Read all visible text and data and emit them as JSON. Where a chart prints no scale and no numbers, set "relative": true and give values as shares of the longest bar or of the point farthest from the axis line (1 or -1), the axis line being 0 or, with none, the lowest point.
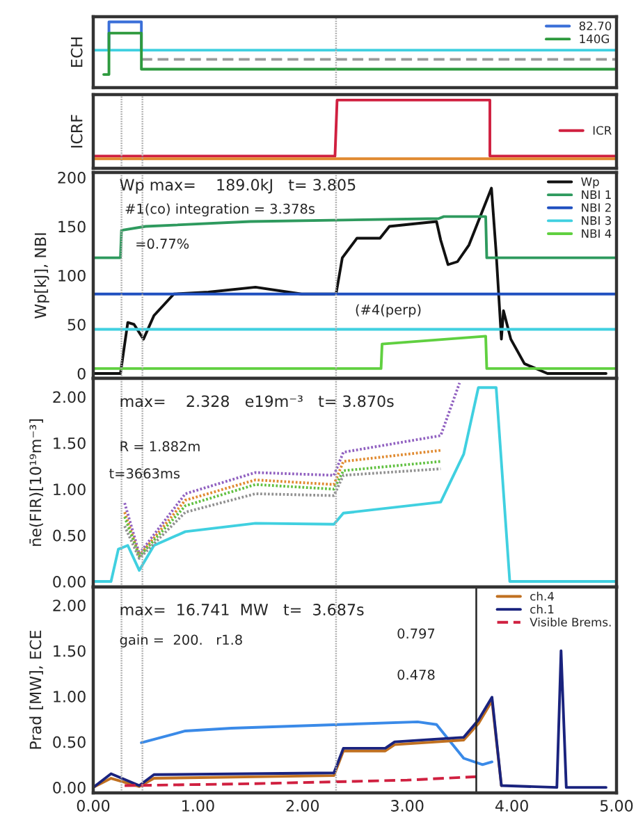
{
  "chart_data": [
    {
      "type": "line",
      "ylabel": "ECH",
      "relative": true,
      "xlim": [
        0,
        5
      ],
      "tick_labels": false,
      "legend": "top right",
      "grid": false,
      "series": [
        {
          "name": "82.70",
          "color": "#3a6fd8",
          "x": [
            0.15,
            0.15,
            0.46,
            0.46
          ],
          "values": [
            0.57,
            1,
            1,
            0.57
          ]
        },
        {
          "color": "#40d0e0",
          "x": [
            0,
            5
          ],
          "values": [
            0.57,
            0.57
          ]
        },
        {
          "color": "#9a9a9a",
          "line_style": "dashed",
          "x": [
            0.46,
            5
          ],
          "values": [
            0.43,
            0.43
          ]
        },
        {
          "name": "140G",
          "color": "#2e9a3e",
          "x": [
            0.1,
            0.15,
            0.15,
            0.46,
            0.46,
            5
          ],
          "values": [
            0.2,
            0.2,
            0.83,
            0.83,
            0.28,
            0.28
          ]
        }
      ],
      "ref_lines": [
        {
          "axis": "x",
          "value": 2.32,
          "color": "#aaaaaa",
          "line_style": "dotted"
        }
      ]
    },
    {
      "type": "line",
      "ylabel": "ICRF",
      "relative": true,
      "xlim": [
        0,
        5
      ],
      "tick_labels": false,
      "legend": "right",
      "grid": false,
      "series": [
        {
          "name": "ICR",
          "color": "#d02040",
          "x": [
            0,
            2.31,
            2.33,
            3.79,
            3.79,
            5
          ],
          "values": [
            0.18,
            0.18,
            1,
            1,
            0.18,
            0.18
          ]
        },
        {
          "color": "#e08a30",
          "x": [
            0,
            5
          ],
          "values": [
            0.14,
            0.14
          ]
        }
      ],
      "ref_lines": [
        {
          "axis": "x",
          "value": 0.27,
          "color": "#aaaaaa",
          "line_style": "dotted"
        },
        {
          "axis": "x",
          "value": 0.47,
          "color": "#aaaaaa",
          "line_style": "dotted"
        }
      ]
    },
    {
      "type": "line",
      "ylabel": "Wp[kJ], NBI",
      "xlim": [
        0,
        5
      ],
      "ylim": [
        -5,
        205
      ],
      "yticks": [
        0,
        50,
        100,
        150,
        200
      ],
      "tick_labels": "y",
      "legend": "top right",
      "grid": false,
      "series": [
        {
          "name": "Wp",
          "color": "#111111",
          "x": [
            0,
            0.26,
            0.33,
            0.39,
            0.48,
            0.58,
            0.77,
            1.1,
            1.55,
            1.99,
            2.32,
            2.38,
            2.52,
            2.74,
            2.83,
            3.1,
            3.28,
            3.32,
            3.39,
            3.48,
            3.59,
            3.805,
            3.85,
            3.9,
            3.92,
            3.99,
            4.12,
            4.34,
            4.9
          ],
          "values": [
            0,
            0,
            52,
            50,
            35,
            59,
            81,
            83,
            88,
            81,
            81,
            118,
            138,
            138,
            150,
            153,
            155,
            136,
            111,
            114,
            131,
            189,
            123,
            35,
            64,
            35,
            10,
            0,
            0
          ]
        },
        {
          "name": "NBI 1",
          "color": "#2e9a5e",
          "x": [
            0,
            0.26,
            0.27,
            0.5,
            1.5,
            3.3,
            3.35,
            3.75,
            3.76,
            5
          ],
          "values": [
            118,
            118,
            146,
            150,
            155,
            158,
            160,
            160,
            118,
            118
          ]
        },
        {
          "name": "NBI 2",
          "color": "#2050c0",
          "x": [
            0,
            5
          ],
          "values": [
            81,
            81
          ]
        },
        {
          "name": "NBI 3",
          "color": "#40d0e0",
          "x": [
            0,
            5
          ],
          "values": [
            45,
            45
          ]
        },
        {
          "name": "NBI 4",
          "color": "#60d040",
          "x": [
            0,
            2.75,
            2.76,
            3.75,
            3.76,
            5
          ],
          "values": [
            5,
            5,
            30,
            38,
            5,
            5
          ]
        }
      ],
      "annotations": [
        "Wp max=    189.0kJ   t= 3.805",
        "#1(co) integration = 3.378s",
        "=0.77%",
        "(#4(perp)"
      ],
      "ref_lines": [
        {
          "axis": "x",
          "value": 0.27,
          "color": "#aaaaaa",
          "line_style": "dotted"
        },
        {
          "axis": "x",
          "value": 0.47,
          "color": "#aaaaaa",
          "line_style": "dotted"
        },
        {
          "axis": "x",
          "value": 2.32,
          "color": "#aaaaaa",
          "line_style": "dotted"
        }
      ]
    },
    {
      "type": "line",
      "ylabel": "n̄e(FIR)[10¹⁹m⁻³]",
      "xlim": [
        0,
        5
      ],
      "ylim": [
        -0.06,
        2.2
      ],
      "yticks": [
        {
          "value": 0,
          "label": "0.00"
        },
        {
          "value": 0.5,
          "label": "0.50"
        },
        {
          "value": 1,
          "label": "1.00"
        },
        {
          "value": 1.5,
          "label": "1.50"
        },
        {
          "value": 2,
          "label": "2.00"
        }
      ],
      "tick_labels": "y",
      "grid": false,
      "series": [
        {
          "color": "#40d0e0",
          "x": [
            0,
            0.17,
            0.24,
            0.33,
            0.44,
            0.58,
            0.88,
            1.55,
            2.3,
            2.39,
            3.32,
            3.54,
            3.68,
            3.85,
            3.98,
            5
          ],
          "values": [
            0,
            0,
            0.35,
            0.39,
            0.12,
            0.39,
            0.54,
            0.63,
            0.62,
            0.74,
            0.86,
            1.38,
            2.1,
            2.1,
            0,
            0
          ]
        },
        {
          "color": "#9060c0",
          "line_style": "dotted",
          "x": [
            0.3,
            0.44,
            0.88,
            1.55,
            2.3,
            2.39,
            3.32,
            3.5
          ],
          "values": [
            0.85,
            0.3,
            0.95,
            1.18,
            1.15,
            1.4,
            1.58,
            2.15
          ]
        },
        {
          "color": "#e08a30",
          "line_style": "dotted",
          "x": [
            0.3,
            0.44,
            0.88,
            1.55,
            2.3,
            2.39,
            3.32
          ],
          "values": [
            0.75,
            0.28,
            0.88,
            1.1,
            1.05,
            1.3,
            1.42
          ]
        },
        {
          "color": "#60c040",
          "line_style": "dotted",
          "x": [
            0.3,
            0.44,
            0.88,
            1.55,
            2.3,
            2.39,
            3.32
          ],
          "values": [
            0.7,
            0.27,
            0.82,
            1.05,
            1.0,
            1.2,
            1.3
          ]
        },
        {
          "color": "#909090",
          "line_style": "dotted",
          "x": [
            0.3,
            0.44,
            0.88,
            1.55,
            2.3,
            2.39,
            3.32
          ],
          "values": [
            0.6,
            0.25,
            0.75,
            0.95,
            0.93,
            1.15,
            1.22
          ]
        }
      ],
      "annotations": [
        "max=    2.328   e19m⁻³   t= 3.870s",
        "R = 1.882m",
        "t=3663ms"
      ],
      "ref_lines": [
        {
          "axis": "x",
          "value": 0.27,
          "color": "#aaaaaa",
          "line_style": "dotted"
        },
        {
          "axis": "x",
          "value": 0.47,
          "color": "#aaaaaa",
          "line_style": "dotted"
        },
        {
          "axis": "x",
          "value": 2.32,
          "color": "#aaaaaa",
          "line_style": "dotted"
        }
      ]
    },
    {
      "type": "line",
      "ylabel": "Prad [MW], ECE",
      "xlim": [
        0,
        5
      ],
      "ylim": [
        -0.06,
        2.2
      ],
      "yticks": [
        {
          "value": 0,
          "label": "0.00"
        },
        {
          "value": 0.5,
          "label": "0.50"
        },
        {
          "value": 1,
          "label": "1.00"
        },
        {
          "value": 1.5,
          "label": "1.50"
        },
        {
          "value": 2,
          "label": "2.00"
        }
      ],
      "xticks": [
        {
          "value": 0,
          "label": "0.00"
        },
        {
          "value": 1,
          "label": "1.00"
        },
        {
          "value": 2,
          "label": "2.00"
        },
        {
          "value": 3,
          "label": "3.00"
        },
        {
          "value": 4,
          "label": "4.00"
        },
        {
          "value": 5,
          "label": "5.00"
        }
      ],
      "legend": "top right",
      "grid": false,
      "series": [
        {
          "color": "#3a8ae8",
          "x": [
            0.46,
            0.88,
            1.32,
            3.1,
            3.28,
            3.54,
            3.72,
            3.81
          ],
          "values": [
            0.49,
            0.62,
            0.65,
            0.72,
            0.69,
            0.32,
            0.25,
            0.28
          ]
        },
        {
          "name": "ch.4",
          "color": "#c07020",
          "x": [
            0,
            0.17,
            0.44,
            0.58,
            2.3,
            2.39,
            2.79,
            2.88,
            3.54,
            3.68,
            3.81,
            3.9
          ],
          "values": [
            0,
            0.1,
            0.01,
            0.1,
            0.13,
            0.4,
            0.4,
            0.47,
            0.52,
            0.7,
            0.95,
            0.02
          ]
        },
        {
          "name": "ch.1",
          "color": "#1a237e",
          "x": [
            0,
            0.17,
            0.44,
            0.58,
            2.3,
            2.39,
            2.79,
            2.88,
            3.54,
            3.68,
            3.81,
            3.9,
            4.43,
            4.47,
            4.52,
            4.9
          ],
          "values": [
            0,
            0.15,
            0.02,
            0.14,
            0.16,
            0.43,
            0.43,
            0.5,
            0.55,
            0.74,
            0.99,
            0.02,
            0,
            1.5,
            0,
            0
          ]
        },
        {
          "name": "Visible Brems.",
          "color": "#d02040",
          "line_style": "dashed",
          "x": [
            0.3,
            1.5,
            3.0,
            3.7
          ],
          "values": [
            0.02,
            0.04,
            0.08,
            0.12
          ]
        }
      ],
      "annotations": [
        "max=  16.741  MW   t=  3.687s",
        "gain =  200.   r1.8",
        "0.797",
        "0.478"
      ],
      "ref_lines": [
        {
          "axis": "x",
          "value": 0.27,
          "color": "#aaaaaa",
          "line_style": "dotted"
        },
        {
          "axis": "x",
          "value": 0.47,
          "color": "#aaaaaa",
          "line_style": "dotted"
        },
        {
          "axis": "x",
          "value": 2.32,
          "color": "#aaaaaa",
          "line_style": "dotted"
        },
        {
          "axis": "x",
          "value": 3.66,
          "color": "#222222",
          "line_style": "solid"
        }
      ]
    }
  ]
}
